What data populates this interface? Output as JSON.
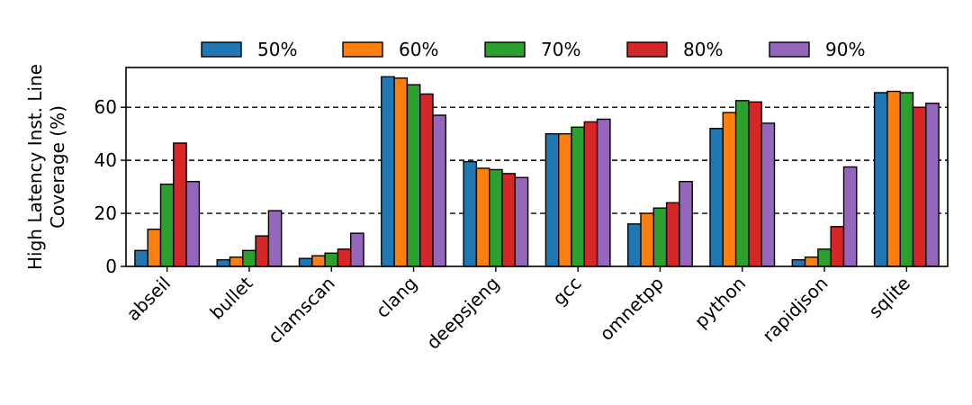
{
  "chart_data": {
    "type": "bar",
    "title": "",
    "xlabel": "",
    "ylabel_lines": [
      "High Latency Inst. Line",
      "Coverage (%)"
    ],
    "ylim": [
      0,
      75
    ],
    "yticks": [
      0,
      20,
      40,
      60
    ],
    "grid": {
      "axis": "y",
      "style": "dashed",
      "at": [
        20,
        40,
        60
      ]
    },
    "legend": {
      "position": "top-center",
      "columns": 5
    },
    "categories": [
      "abseil",
      "bullet",
      "clamscan",
      "clang",
      "deepsjeng",
      "gcc",
      "omnetpp",
      "python",
      "rapidjson",
      "sqlite"
    ],
    "series": [
      {
        "name": "50%",
        "color": "#1f77b4",
        "values": [
          6,
          2.5,
          3,
          71.5,
          39.5,
          50,
          16,
          52,
          2.5,
          65.5
        ]
      },
      {
        "name": "60%",
        "color": "#ff7f0e",
        "values": [
          14,
          3.5,
          4,
          71,
          37,
          50,
          20,
          58,
          3.5,
          66
        ]
      },
      {
        "name": "70%",
        "color": "#2ca02c",
        "values": [
          31,
          6,
          5,
          68.5,
          36.5,
          52.5,
          22,
          62.5,
          6.5,
          65.5
        ]
      },
      {
        "name": "80%",
        "color": "#d62728",
        "values": [
          46.5,
          11.5,
          6.5,
          65,
          35,
          54.5,
          24,
          62,
          15,
          60
        ]
      },
      {
        "name": "90%",
        "color": "#9467bd",
        "values": [
          32,
          21,
          12.5,
          57,
          33.5,
          55.5,
          32,
          54,
          37.5,
          61.5
        ]
      }
    ]
  }
}
